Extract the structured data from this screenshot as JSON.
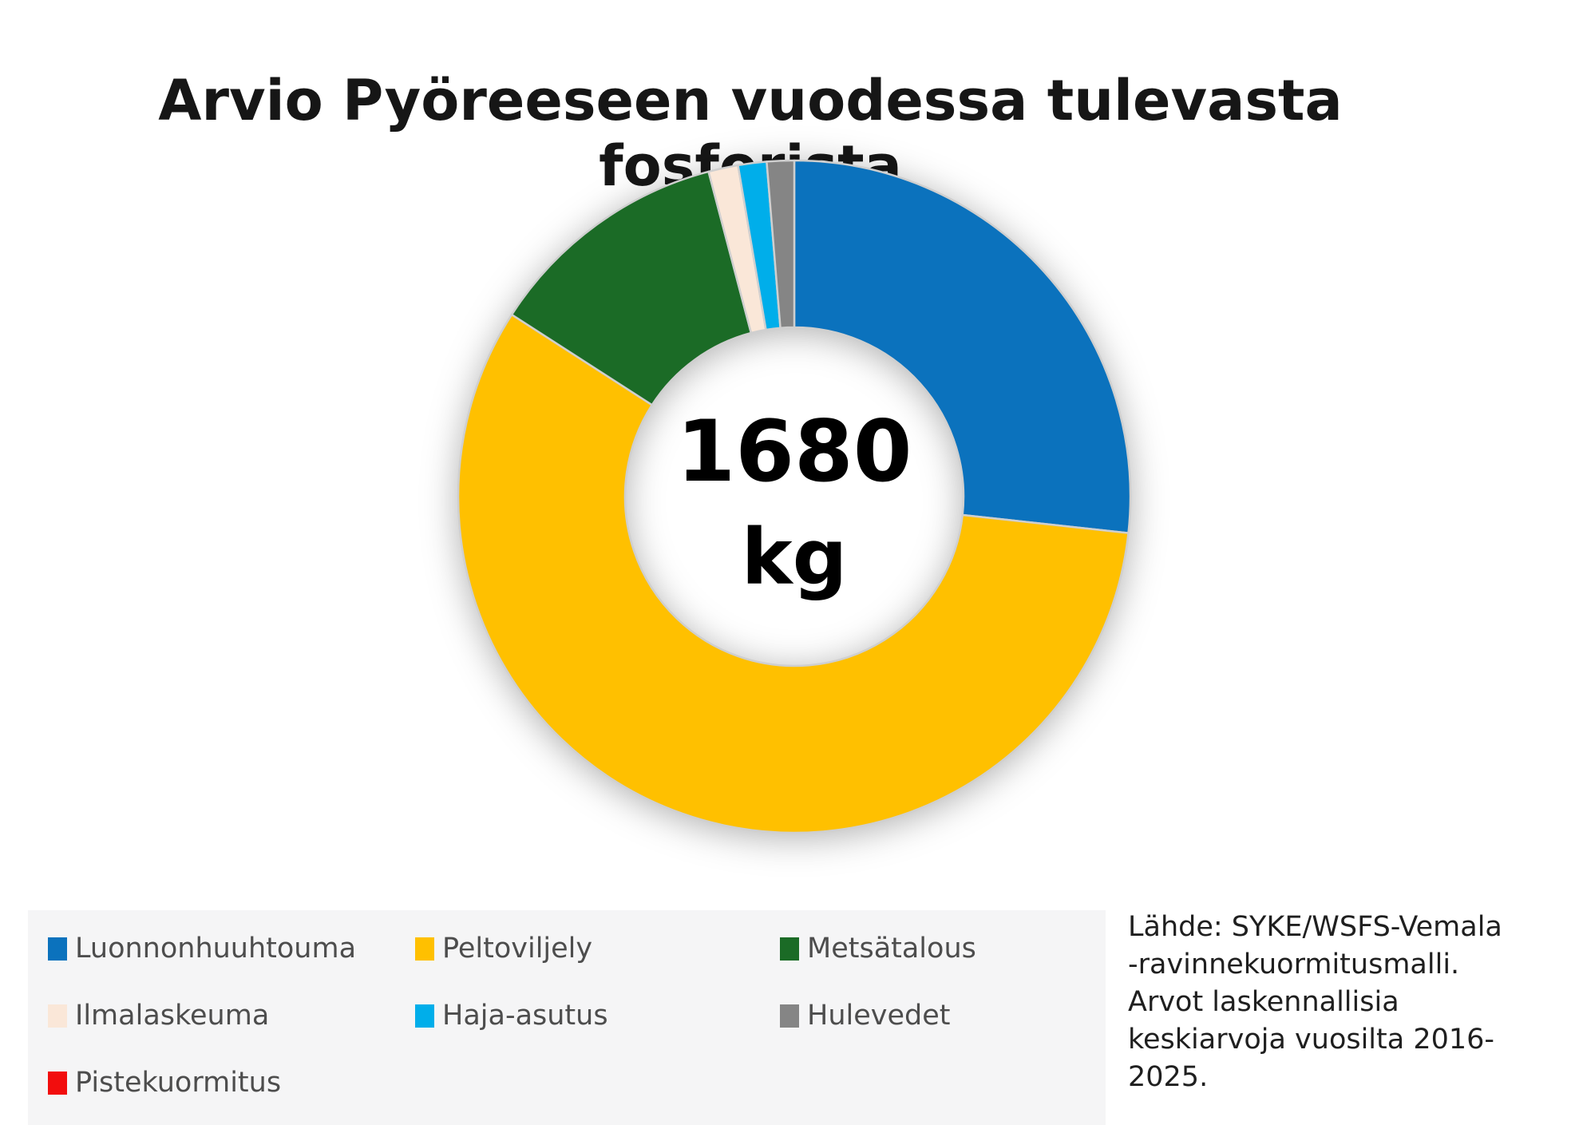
{
  "title": "Arvio Pyöreeseen vuodessa tulevasta fosforista",
  "center_label": {
    "value": "1680",
    "unit": "kg"
  },
  "source_note": "Lähde: SYKE/WSFS-Vemala\n-ravinnekuormitusmalli.\nArvot laskennallisia\nkeskiarvoja vuosilta 2016-\n2025.",
  "chart_data": {
    "type": "pie",
    "subtype": "donut",
    "title": "Arvio Pyöreeseen vuodessa tulevasta fosforista",
    "center_text": "1680 kg",
    "total_kg": 1680,
    "start_angle_deg": 0,
    "direction": "clockwise",
    "legend_position": "bottom-left",
    "series": [
      {
        "name": "Luonnonhuuhtouma",
        "value_kg": 449,
        "fraction": 0.267,
        "color": "#0b72bd"
      },
      {
        "name": "Peltoviljely",
        "value_kg": 964,
        "fraction": 0.574,
        "color": "#ffc000"
      },
      {
        "name": "Metsätalous",
        "value_kg": 198,
        "fraction": 0.118,
        "color": "#1b6b26"
      },
      {
        "name": "Ilmalaskeuma",
        "value_kg": 24,
        "fraction": 0.014,
        "color": "#fae7d8"
      },
      {
        "name": "Haja-asutus",
        "value_kg": 23,
        "fraction": 0.014,
        "color": "#00aeea"
      },
      {
        "name": "Hulevedet",
        "value_kg": 22,
        "fraction": 0.013,
        "color": "#858585"
      },
      {
        "name": "Pistekuormitus",
        "value_kg": 0,
        "fraction": 0.0,
        "color": "#f20d0d"
      }
    ],
    "slice_border_color": "#cfcfcf"
  }
}
